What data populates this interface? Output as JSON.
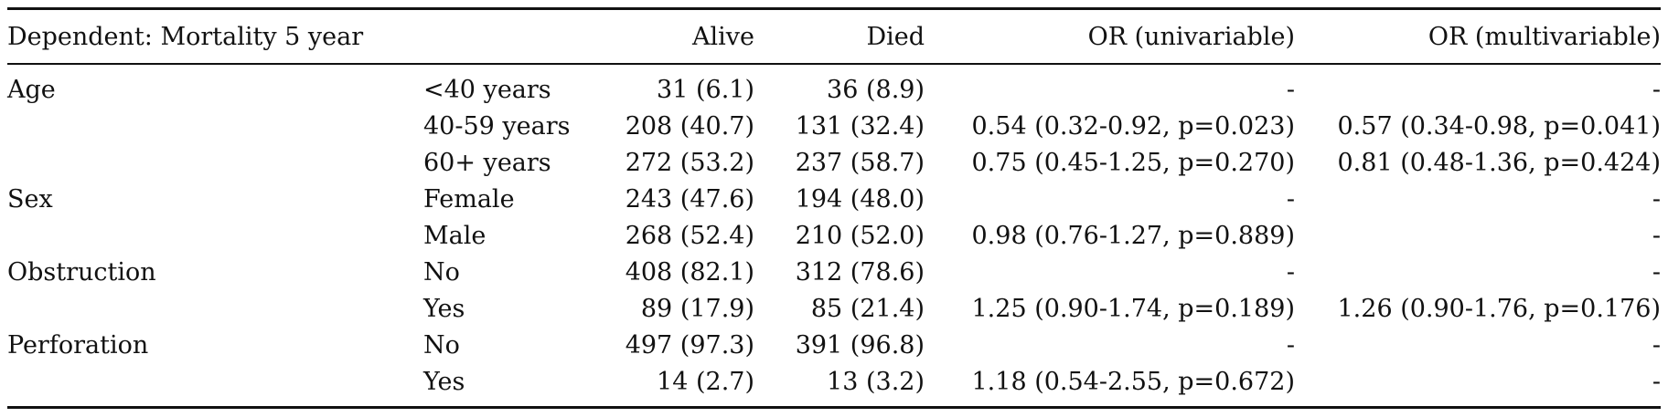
{
  "header": {
    "dependent": "Dependent: Mortality 5 year",
    "level": "",
    "alive": "Alive",
    "died": "Died",
    "or_uni": "OR (univariable)",
    "or_multi": "OR (multivariable)"
  },
  "rows": [
    {
      "variable": "Age",
      "level": "<40 years",
      "alive": "31 (6.1)",
      "died": "36 (8.9)",
      "or_uni": "-",
      "or_multi": "-"
    },
    {
      "variable": "",
      "level": "40-59 years",
      "alive": "208 (40.7)",
      "died": "131 (32.4)",
      "or_uni": "0.54 (0.32-0.92, p=0.023)",
      "or_multi": "0.57 (0.34-0.98, p=0.041)"
    },
    {
      "variable": "",
      "level": "60+ years",
      "alive": "272 (53.2)",
      "died": "237 (58.7)",
      "or_uni": "0.75 (0.45-1.25, p=0.270)",
      "or_multi": "0.81 (0.48-1.36, p=0.424)"
    },
    {
      "variable": "Sex",
      "level": "Female",
      "alive": "243 (47.6)",
      "died": "194 (48.0)",
      "or_uni": "-",
      "or_multi": "-"
    },
    {
      "variable": "",
      "level": "Male",
      "alive": "268 (52.4)",
      "died": "210 (52.0)",
      "or_uni": "0.98 (0.76-1.27, p=0.889)",
      "or_multi": "-"
    },
    {
      "variable": "Obstruction",
      "level": "No",
      "alive": "408 (82.1)",
      "died": "312 (78.6)",
      "or_uni": "-",
      "or_multi": "-"
    },
    {
      "variable": "",
      "level": "Yes",
      "alive": "89 (17.9)",
      "died": "85 (21.4)",
      "or_uni": "1.25 (0.90-1.74, p=0.189)",
      "or_multi": "1.26 (0.90-1.76, p=0.176)"
    },
    {
      "variable": "Perforation",
      "level": "No",
      "alive": "497 (97.3)",
      "died": "391 (96.8)",
      "or_uni": "-",
      "or_multi": "-"
    },
    {
      "variable": "",
      "level": "Yes",
      "alive": "14 (2.7)",
      "died": "13 (3.2)",
      "or_uni": "1.18 (0.54-2.55, p=0.672)",
      "or_multi": "-"
    }
  ]
}
